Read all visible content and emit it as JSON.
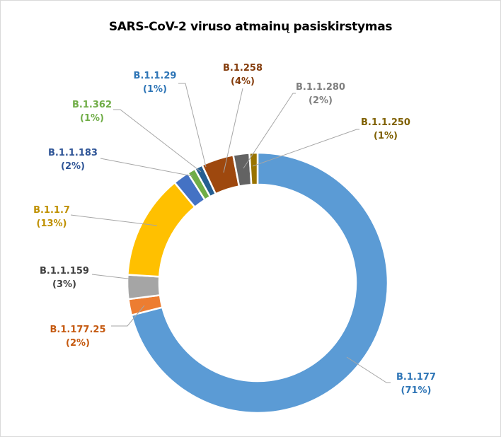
{
  "chart_data": {
    "type": "pie",
    "subtype": "doughnut",
    "title": "SARS-CoV-2 viruso atmainų pasiskirstymas",
    "start": "top",
    "direction": "clockwise",
    "slices": [
      {
        "name": "B.1.177",
        "value": 71,
        "label": "(71%)",
        "color": "#5b9bd5"
      },
      {
        "name": "B.1.177.25",
        "value": 2,
        "label": "(2%)",
        "color": "#ed7d31"
      },
      {
        "name": "B.1.1.159",
        "value": 3,
        "label": "(3%)",
        "color": "#a5a5a5"
      },
      {
        "name": "B.1.1.7",
        "value": 13,
        "label": "(13%)",
        "color": "#ffc000"
      },
      {
        "name": "B.1.1.183",
        "value": 2,
        "label": "(2%)",
        "color": "#4472c4"
      },
      {
        "name": "B.1.362",
        "value": 1,
        "label": "(1%)",
        "color": "#70ad47"
      },
      {
        "name": "B.1.1.29",
        "value": 1,
        "label": "(1%)",
        "color": "#255e91"
      },
      {
        "name": "B.1.258",
        "value": 4,
        "label": "(4%)",
        "color": "#9e480e"
      },
      {
        "name": "B.1.1.280",
        "value": 2,
        "label": "(2%)",
        "color": "#636363"
      },
      {
        "name": "B.1.1.250",
        "value": 1,
        "label": "(1%)",
        "color": "#997300"
      }
    ],
    "label_colors": {
      "B.1.177": "#2e75b6",
      "B.1.177.25": "#c55a11",
      "B.1.1.159": "#404040",
      "B.1.1.7": "#bf9000",
      "B.1.1.183": "#2f5597",
      "B.1.362": "#70ad47",
      "B.1.1.29": "#2e75b6",
      "B.1.258": "#843c0c",
      "B.1.1.280": "#7f7f7f",
      "B.1.1.250": "#7f6000"
    },
    "legend": "none"
  }
}
